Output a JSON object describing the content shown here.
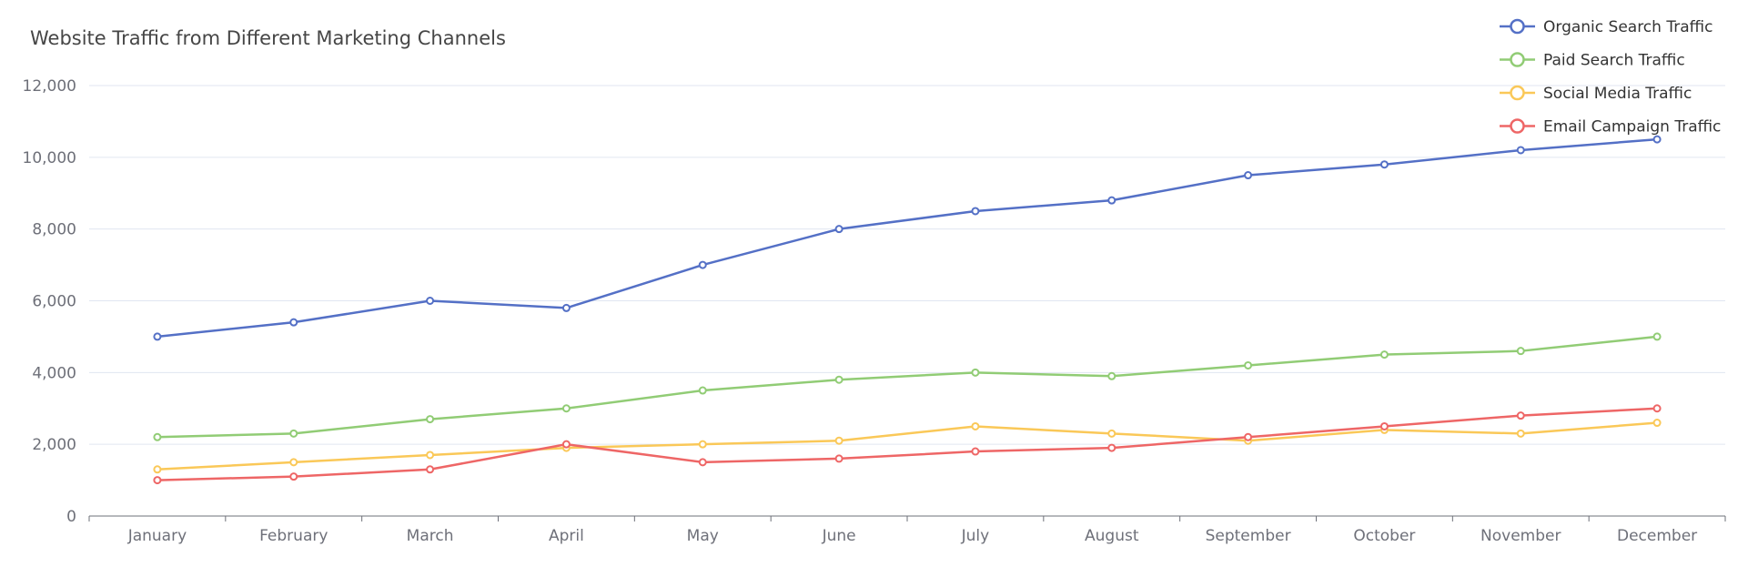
{
  "chart_data": {
    "type": "line",
    "title": "Website Traffic from Different Marketing Channels",
    "xlabel": "",
    "ylabel": "",
    "categories": [
      "January",
      "February",
      "March",
      "April",
      "May",
      "June",
      "July",
      "August",
      "September",
      "October",
      "November",
      "December"
    ],
    "ylim": [
      0,
      12000
    ],
    "yticks": [
      0,
      2000,
      4000,
      6000,
      8000,
      10000,
      12000
    ],
    "ytick_labels": [
      "0",
      "2,000",
      "4,000",
      "6,000",
      "8,000",
      "10,000",
      "12,000"
    ],
    "grid": true,
    "legend_position": "top-right",
    "series": [
      {
        "name": "Organic Search Traffic",
        "color": "#5470C6",
        "values": [
          5000,
          5400,
          6000,
          5800,
          7000,
          8000,
          8500,
          8800,
          9500,
          9800,
          10200,
          10500
        ]
      },
      {
        "name": "Paid Search Traffic",
        "color": "#91CC75",
        "values": [
          2200,
          2300,
          2700,
          3000,
          3500,
          3800,
          4000,
          3900,
          4200,
          4500,
          4600,
          5000
        ]
      },
      {
        "name": "Social Media Traffic",
        "color": "#FAC858",
        "values": [
          1300,
          1500,
          1700,
          1900,
          2000,
          2100,
          2500,
          2300,
          2100,
          2400,
          2300,
          2600
        ]
      },
      {
        "name": "Email Campaign Traffic",
        "color": "#EE6666",
        "values": [
          1000,
          1100,
          1300,
          2000,
          1500,
          1600,
          1800,
          1900,
          2200,
          2500,
          2800,
          3000
        ]
      }
    ]
  }
}
